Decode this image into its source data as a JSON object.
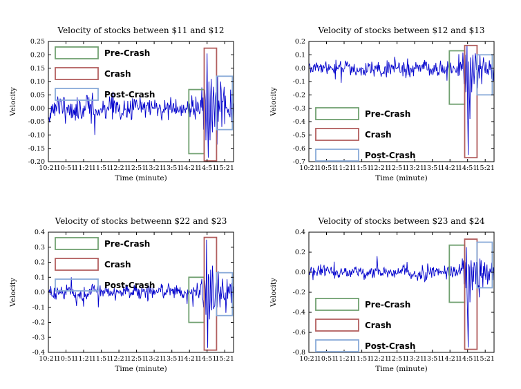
{
  "figure": {
    "background": "#ffffff"
  },
  "legend_labels": [
    "Pre-Crash",
    "Crash",
    "Post-Crash"
  ],
  "colors": {
    "line": "#0000cc",
    "pre_crash": "#70a070",
    "crash": "#b25e5e",
    "post_crash": "#88aad8"
  },
  "chart_data": [
    {
      "type": "line",
      "title": "Velocity of stocks between $11 and $12",
      "xlabel": "Time (minute)",
      "ylabel": "Velocity",
      "line_color": "#0000cc",
      "ylim": [
        -0.2,
        0.25
      ],
      "yticks": [
        0.25,
        0.2,
        0.15,
        0.1,
        0.05,
        0.0,
        -0.05,
        -0.1,
        -0.15,
        -0.2
      ],
      "ytick_decimals": 2,
      "x_domain": [
        621,
        936
      ],
      "xticks": [
        621,
        651,
        681,
        711,
        741,
        771,
        801,
        831,
        861,
        891,
        921
      ],
      "xtick_labels": [
        "10:21",
        "10:51",
        "11:21",
        "11:51",
        "12:21",
        "12:51",
        "13:21",
        "13:51",
        "14:21",
        "14:51",
        "15:21"
      ],
      "legend": {
        "position": "upper-left",
        "entries": [
          {
            "label": "Pre-Crash",
            "color": "#70a070"
          },
          {
            "label": "Crash",
            "color": "#b25e5e"
          },
          {
            "label": "Post-Crash",
            "color": "#88aad8"
          }
        ]
      },
      "regions": [
        {
          "name": "pre-crash",
          "color": "#70a070",
          "t0": 860,
          "t1": 886,
          "v0": -0.17,
          "v1": 0.07
        },
        {
          "name": "crash",
          "color": "#b25e5e",
          "t0": 886,
          "t1": 907,
          "v0": -0.197,
          "v1": 0.225
        },
        {
          "name": "post-crash",
          "color": "#88aad8",
          "t0": 907,
          "t1": 934,
          "v0": -0.08,
          "v1": 0.12
        }
      ],
      "series_spec": {
        "seed": 11,
        "t0": 621,
        "t1": 936,
        "step": 1,
        "wobble": 0.008,
        "segments": [
          {
            "from": 621,
            "to": 882,
            "sd": 0.024
          },
          {
            "from": 882,
            "to": 910,
            "sd": 0.06
          },
          {
            "from": 910,
            "to": 936,
            "sd": 0.04
          }
        ],
        "spikes": [
          [
            700,
            -0.1
          ],
          [
            885,
            -0.08
          ],
          [
            887,
            0.07
          ],
          [
            889,
            -0.12
          ],
          [
            891,
            0.205
          ],
          [
            892,
            -0.06
          ],
          [
            893,
            -0.185
          ],
          [
            894,
            0.1
          ],
          [
            896,
            -0.12
          ],
          [
            898,
            0.11
          ],
          [
            900,
            -0.09
          ],
          [
            902,
            0.08
          ],
          [
            904,
            -0.07
          ],
          [
            906,
            0.06
          ],
          [
            909,
            0.12
          ],
          [
            914,
            0.1
          ],
          [
            916,
            -0.07
          ],
          [
            920,
            0.08
          ]
        ]
      }
    },
    {
      "type": "line",
      "title": "Velocity of stocks between $12 and $13",
      "xlabel": "Time (minute)",
      "ylabel": "Velocity",
      "line_color": "#0000cc",
      "ylim": [
        -0.7,
        0.2
      ],
      "yticks": [
        0.2,
        0.1,
        0.0,
        -0.1,
        -0.2,
        -0.3,
        -0.4,
        -0.5,
        -0.6,
        -0.7
      ],
      "ytick_decimals": 1,
      "x_domain": [
        621,
        936
      ],
      "xticks": [
        621,
        651,
        681,
        711,
        741,
        771,
        801,
        831,
        861,
        891,
        921
      ],
      "xtick_labels": [
        "10:21",
        "10:51",
        "11:21",
        "11:51",
        "12:21",
        "12:51",
        "13:21",
        "13:51",
        "14:21",
        "14:51",
        "15:21"
      ],
      "legend": {
        "position": "lower-left",
        "entries": [
          {
            "label": "Pre-Crash",
            "color": "#70a070"
          },
          {
            "label": "Crash",
            "color": "#b25e5e"
          },
          {
            "label": "Post-Crash",
            "color": "#88aad8"
          }
        ]
      },
      "regions": [
        {
          "name": "pre-crash",
          "color": "#70a070",
          "t0": 860,
          "t1": 886,
          "v0": -0.27,
          "v1": 0.13
        },
        {
          "name": "crash",
          "color": "#b25e5e",
          "t0": 886,
          "t1": 907,
          "v0": -0.67,
          "v1": 0.17
        },
        {
          "name": "post-crash",
          "color": "#88aad8",
          "t0": 907,
          "t1": 933,
          "v0": -0.2,
          "v1": 0.1
        }
      ],
      "series_spec": {
        "seed": 12,
        "t0": 621,
        "t1": 936,
        "step": 1,
        "wobble": 0.012,
        "segments": [
          {
            "from": 621,
            "to": 882,
            "sd": 0.032
          },
          {
            "from": 882,
            "to": 910,
            "sd": 0.08
          },
          {
            "from": 910,
            "to": 936,
            "sd": 0.05
          }
        ],
        "spikes": [
          [
            676,
            -0.11
          ],
          [
            885,
            -0.12
          ],
          [
            887,
            0.1
          ],
          [
            888,
            -0.18
          ],
          [
            890,
            0.17
          ],
          [
            891,
            -0.3
          ],
          [
            892,
            -0.65
          ],
          [
            893,
            0.05
          ],
          [
            894,
            -0.22
          ],
          [
            895,
            -0.38
          ],
          [
            896,
            0.08
          ],
          [
            898,
            -0.18
          ],
          [
            900,
            0.1
          ],
          [
            902,
            -0.12
          ],
          [
            905,
            0.08
          ],
          [
            908,
            -0.15
          ],
          [
            912,
            0.1
          ],
          [
            915,
            -0.12
          ],
          [
            918,
            0.08
          ]
        ]
      }
    },
    {
      "type": "line",
      "title": "Velocity of stocks betweenn $22 and $23",
      "xlabel": "Time (minute)",
      "ylabel": "Velocity",
      "line_color": "#0000cc",
      "ylim": [
        -0.4,
        0.4
      ],
      "yticks": [
        0.4,
        0.3,
        0.2,
        0.1,
        0.0,
        -0.1,
        -0.2,
        -0.3,
        -0.4
      ],
      "ytick_decimals": 1,
      "x_domain": [
        621,
        936
      ],
      "xticks": [
        621,
        651,
        681,
        711,
        741,
        771,
        801,
        831,
        861,
        891,
        921
      ],
      "xtick_labels": [
        "10:21",
        "10:51",
        "11:21",
        "11:51",
        "12:21",
        "12:51",
        "13:21",
        "13:51",
        "14:21",
        "14:51",
        "15:21"
      ],
      "legend": {
        "position": "upper-left",
        "entries": [
          {
            "label": "Pre-Crash",
            "color": "#70a070"
          },
          {
            "label": "Crash",
            "color": "#b25e5e"
          },
          {
            "label": "Post-Crash",
            "color": "#88aad8"
          }
        ]
      },
      "regions": [
        {
          "name": "pre-crash",
          "color": "#70a070",
          "t0": 860,
          "t1": 886,
          "v0": -0.2,
          "v1": 0.1
        },
        {
          "name": "crash",
          "color": "#b25e5e",
          "t0": 886,
          "t1": 907,
          "v0": -0.385,
          "v1": 0.365
        },
        {
          "name": "post-crash",
          "color": "#88aad8",
          "t0": 907,
          "t1": 934,
          "v0": -0.155,
          "v1": 0.13
        }
      ],
      "series_spec": {
        "seed": 22,
        "t0": 621,
        "t1": 936,
        "step": 1,
        "wobble": 0.01,
        "segments": [
          {
            "from": 621,
            "to": 882,
            "sd": 0.028
          },
          {
            "from": 882,
            "to": 910,
            "sd": 0.07
          },
          {
            "from": 910,
            "to": 936,
            "sd": 0.05
          }
        ],
        "spikes": [
          [
            660,
            0.1
          ],
          [
            706,
            -0.1
          ],
          [
            885,
            -0.1
          ],
          [
            887,
            0.08
          ],
          [
            889,
            -0.15
          ],
          [
            890,
            0.35
          ],
          [
            891,
            -0.1
          ],
          [
            892,
            -0.37
          ],
          [
            893,
            0.12
          ],
          [
            895,
            -0.18
          ],
          [
            897,
            0.15
          ],
          [
            899,
            -0.12
          ],
          [
            901,
            0.1
          ],
          [
            904,
            -0.09
          ],
          [
            907,
            0.08
          ],
          [
            910,
            0.14
          ],
          [
            913,
            -0.1
          ],
          [
            917,
            0.09
          ]
        ]
      }
    },
    {
      "type": "line",
      "title": "Velocity of stocks between $23 and $24",
      "xlabel": "Time (minute)",
      "ylabel": "Velocity",
      "line_color": "#0000cc",
      "ylim": [
        -0.8,
        0.4
      ],
      "yticks": [
        0.4,
        0.2,
        0.0,
        -0.2,
        -0.4,
        -0.6,
        -0.8
      ],
      "ytick_decimals": 1,
      "x_domain": [
        621,
        936
      ],
      "xticks": [
        621,
        651,
        681,
        711,
        741,
        771,
        801,
        831,
        861,
        891,
        921
      ],
      "xtick_labels": [
        "10:21",
        "10:51",
        "11:21",
        "11:51",
        "12:21",
        "12:51",
        "13:21",
        "13:51",
        "14:21",
        "14:51",
        "15:21"
      ],
      "legend": {
        "position": "lower-left",
        "entries": [
          {
            "label": "Pre-Crash",
            "color": "#70a070"
          },
          {
            "label": "Crash",
            "color": "#b25e5e"
          },
          {
            "label": "Post-Crash",
            "color": "#88aad8"
          }
        ]
      },
      "regions": [
        {
          "name": "pre-crash",
          "color": "#70a070",
          "t0": 860,
          "t1": 886,
          "v0": -0.3,
          "v1": 0.27
        },
        {
          "name": "crash",
          "color": "#b25e5e",
          "t0": 886,
          "t1": 907,
          "v0": -0.77,
          "v1": 0.33
        },
        {
          "name": "post-crash",
          "color": "#88aad8",
          "t0": 907,
          "t1": 933,
          "v0": -0.155,
          "v1": 0.3
        }
      ],
      "series_spec": {
        "seed": 23,
        "t0": 621,
        "t1": 936,
        "step": 1,
        "wobble": 0.012,
        "segments": [
          {
            "from": 621,
            "to": 882,
            "sd": 0.035
          },
          {
            "from": 882,
            "to": 910,
            "sd": 0.09
          },
          {
            "from": 910,
            "to": 936,
            "sd": 0.065
          }
        ],
        "spikes": [
          [
            737,
            0.16
          ],
          [
            885,
            -0.12
          ],
          [
            887,
            0.1
          ],
          [
            889,
            0.25
          ],
          [
            890,
            -0.2
          ],
          [
            891,
            -0.45
          ],
          [
            892,
            -0.75
          ],
          [
            893,
            0.08
          ],
          [
            895,
            -0.3
          ],
          [
            897,
            0.12
          ],
          [
            899,
            -0.18
          ],
          [
            902,
            0.1
          ],
          [
            905,
            -0.12
          ],
          [
            908,
            0.1
          ],
          [
            911,
            -0.25
          ],
          [
            914,
            0.12
          ],
          [
            917,
            -0.15
          ],
          [
            920,
            0.1
          ]
        ]
      }
    }
  ]
}
